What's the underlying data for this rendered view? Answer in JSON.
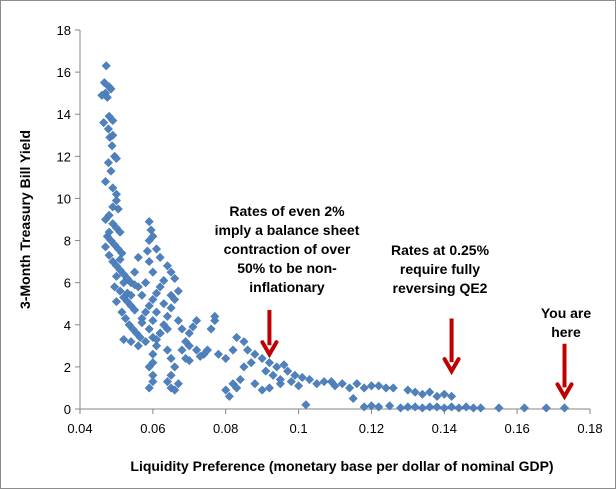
{
  "chart_data": {
    "type": "scatter",
    "title": "",
    "xlabel": "Liquidity Preference (monetary base per dollar of nominal GDP)",
    "ylabel": "3-Month Treasury Bill Yield",
    "xlim": [
      0.04,
      0.18
    ],
    "ylim": [
      0,
      18
    ],
    "x_ticks": [
      "0.04",
      "0.06",
      "0.08",
      "0.1",
      "0.12",
      "0.14",
      "0.16",
      "0.18"
    ],
    "y_ticks": [
      "0",
      "2",
      "4",
      "6",
      "8",
      "10",
      "12",
      "14",
      "16",
      "18"
    ],
    "grid": false,
    "legend": "none",
    "marker": "diamond",
    "marker_color": "#4f81bd",
    "arrow_color": "#c00000",
    "series": [
      {
        "points": [
          [
            0.0472,
            16.3
          ],
          [
            0.0467,
            15.5
          ],
          [
            0.048,
            15.3
          ],
          [
            0.047,
            15.0
          ],
          [
            0.0475,
            14.8
          ],
          [
            0.0485,
            15.2
          ],
          [
            0.0465,
            13.6
          ],
          [
            0.0478,
            13.3
          ],
          [
            0.049,
            13.7
          ],
          [
            0.0482,
            12.9
          ],
          [
            0.0488,
            12.5
          ],
          [
            0.0495,
            12.0
          ],
          [
            0.0478,
            11.7
          ],
          [
            0.0485,
            11.3
          ],
          [
            0.05,
            11.9
          ],
          [
            0.047,
            10.8
          ],
          [
            0.049,
            10.5
          ],
          [
            0.05,
            10.2
          ],
          [
            0.0505,
            9.5
          ],
          [
            0.048,
            9.2
          ],
          [
            0.047,
            9.0
          ],
          [
            0.049,
            8.8
          ],
          [
            0.05,
            8.6
          ],
          [
            0.051,
            8.4
          ],
          [
            0.0475,
            8.2
          ],
          [
            0.0485,
            8.0
          ],
          [
            0.0495,
            7.8
          ],
          [
            0.0505,
            7.6
          ],
          [
            0.0515,
            7.4
          ],
          [
            0.047,
            7.7
          ],
          [
            0.048,
            7.3
          ],
          [
            0.049,
            7.0
          ],
          [
            0.05,
            6.8
          ],
          [
            0.051,
            6.6
          ],
          [
            0.052,
            6.4
          ],
          [
            0.053,
            6.2
          ],
          [
            0.054,
            6.0
          ],
          [
            0.05,
            6.3
          ],
          [
            0.0495,
            5.8
          ],
          [
            0.051,
            5.6
          ],
          [
            0.052,
            5.3
          ],
          [
            0.053,
            5.1
          ],
          [
            0.054,
            4.9
          ],
          [
            0.055,
            4.7
          ],
          [
            0.05,
            5.1
          ],
          [
            0.0515,
            4.6
          ],
          [
            0.0525,
            4.3
          ],
          [
            0.0535,
            4.0
          ],
          [
            0.0545,
            3.8
          ],
          [
            0.0555,
            3.6
          ],
          [
            0.0565,
            3.4
          ],
          [
            0.052,
            3.3
          ],
          [
            0.054,
            3.2
          ],
          [
            0.056,
            3.0
          ],
          [
            0.058,
            3.2
          ],
          [
            0.06,
            3.4
          ],
          [
            0.062,
            3.6
          ],
          [
            0.064,
            3.8
          ],
          [
            0.057,
            4.3
          ],
          [
            0.058,
            4.6
          ],
          [
            0.059,
            4.9
          ],
          [
            0.06,
            5.2
          ],
          [
            0.061,
            5.5
          ],
          [
            0.062,
            5.8
          ],
          [
            0.063,
            6.1
          ],
          [
            0.06,
            6.5
          ],
          [
            0.059,
            7.0
          ],
          [
            0.0585,
            7.5
          ],
          [
            0.059,
            8.0
          ],
          [
            0.0595,
            8.5
          ],
          [
            0.059,
            8.9
          ],
          [
            0.06,
            8.2
          ],
          [
            0.061,
            7.6
          ],
          [
            0.062,
            7.2
          ],
          [
            0.064,
            6.8
          ],
          [
            0.065,
            6.5
          ],
          [
            0.066,
            6.2
          ],
          [
            0.067,
            5.6
          ],
          [
            0.066,
            5.2
          ],
          [
            0.065,
            4.8
          ],
          [
            0.064,
            4.4
          ],
          [
            0.063,
            4.0
          ],
          [
            0.062,
            3.6
          ],
          [
            0.061,
            3.0
          ],
          [
            0.06,
            2.6
          ],
          [
            0.06,
            2.2
          ],
          [
            0.059,
            2.0
          ],
          [
            0.06,
            1.6
          ],
          [
            0.06,
            1.3
          ],
          [
            0.059,
            1.0
          ],
          [
            0.064,
            2.8
          ],
          [
            0.065,
            2.4
          ],
          [
            0.066,
            2.0
          ],
          [
            0.065,
            1.6
          ],
          [
            0.064,
            1.3
          ],
          [
            0.065,
            1.0
          ],
          [
            0.066,
            0.9
          ],
          [
            0.067,
            1.2
          ],
          [
            0.068,
            2.8
          ],
          [
            0.069,
            3.2
          ],
          [
            0.07,
            3.6
          ],
          [
            0.071,
            3.9
          ],
          [
            0.072,
            4.2
          ],
          [
            0.07,
            3.0
          ],
          [
            0.072,
            2.8
          ],
          [
            0.074,
            2.6
          ],
          [
            0.07,
            2.3
          ],
          [
            0.073,
            2.5
          ],
          [
            0.076,
            3.8
          ],
          [
            0.077,
            4.2
          ],
          [
            0.077,
            4.4
          ],
          [
            0.075,
            2.8
          ],
          [
            0.078,
            2.6
          ],
          [
            0.08,
            2.4
          ],
          [
            0.082,
            2.8
          ],
          [
            0.083,
            3.4
          ],
          [
            0.085,
            3.2
          ],
          [
            0.086,
            2.8
          ],
          [
            0.088,
            2.6
          ],
          [
            0.09,
            2.4
          ],
          [
            0.092,
            2.2
          ],
          [
            0.094,
            2.0
          ],
          [
            0.096,
            2.1
          ],
          [
            0.097,
            1.8
          ],
          [
            0.099,
            1.6
          ],
          [
            0.101,
            1.5
          ],
          [
            0.095,
            1.2
          ],
          [
            0.098,
            1.3
          ],
          [
            0.1,
            1.1
          ],
          [
            0.105,
            1.2
          ],
          [
            0.107,
            1.3
          ],
          [
            0.109,
            1.3
          ],
          [
            0.112,
            1.2
          ],
          [
            0.114,
            1.0
          ],
          [
            0.116,
            1.2
          ],
          [
            0.118,
            1.0
          ],
          [
            0.12,
            1.1
          ],
          [
            0.122,
            1.1
          ],
          [
            0.124,
            1.0
          ],
          [
            0.126,
            1.0
          ],
          [
            0.13,
            0.9
          ],
          [
            0.132,
            0.8
          ],
          [
            0.134,
            0.7
          ],
          [
            0.136,
            0.8
          ],
          [
            0.138,
            0.6
          ],
          [
            0.14,
            0.7
          ],
          [
            0.142,
            0.6
          ],
          [
            0.082,
            1.2
          ],
          [
            0.084,
            1.4
          ],
          [
            0.08,
            0.9
          ],
          [
            0.081,
            0.6
          ],
          [
            0.083,
            1.0
          ],
          [
            0.088,
            1.2
          ],
          [
            0.09,
            0.9
          ],
          [
            0.092,
            1.0
          ],
          [
            0.102,
            0.2
          ],
          [
            0.115,
            0.5
          ],
          [
            0.118,
            0.1
          ],
          [
            0.12,
            0.15
          ],
          [
            0.122,
            0.1
          ],
          [
            0.125,
            0.15
          ],
          [
            0.128,
            0.05
          ],
          [
            0.13,
            0.1
          ],
          [
            0.132,
            0.1
          ],
          [
            0.134,
            0.05
          ],
          [
            0.136,
            0.1
          ],
          [
            0.138,
            0.1
          ],
          [
            0.14,
            0.05
          ],
          [
            0.142,
            0.1
          ],
          [
            0.144,
            0.05
          ],
          [
            0.146,
            0.1
          ],
          [
            0.148,
            0.05
          ],
          [
            0.15,
            0.05
          ],
          [
            0.155,
            0.05
          ],
          [
            0.162,
            0.05
          ],
          [
            0.168,
            0.05
          ],
          [
            0.173,
            0.05
          ],
          [
            0.056,
            5.8
          ],
          [
            0.057,
            5.4
          ],
          [
            0.058,
            6.0
          ],
          [
            0.055,
            6.5
          ],
          [
            0.056,
            7.2
          ],
          [
            0.053,
            5.5
          ],
          [
            0.06,
            4.2
          ],
          [
            0.061,
            4.6
          ],
          [
            0.063,
            5.0
          ],
          [
            0.065,
            5.4
          ],
          [
            0.067,
            4.2
          ],
          [
            0.068,
            3.8
          ],
          [
            0.069,
            2.4
          ],
          [
            0.085,
            2.0
          ],
          [
            0.087,
            2.2
          ],
          [
            0.091,
            1.8
          ],
          [
            0.093,
            1.6
          ],
          [
            0.095,
            1.4
          ],
          [
            0.103,
            1.4
          ],
          [
            0.11,
            1.1
          ],
          [
            0.048,
            8.4
          ],
          [
            0.049,
            9.6
          ],
          [
            0.05,
            9.9
          ],
          [
            0.048,
            13.9
          ],
          [
            0.049,
            13.0
          ],
          [
            0.046,
            14.9
          ],
          [
            0.051,
            7.1
          ],
          [
            0.052,
            6.0
          ],
          [
            0.054,
            5.4
          ],
          [
            0.055,
            5.9
          ],
          [
            0.057,
            4.1
          ],
          [
            0.059,
            3.8
          ],
          [
            0.061,
            3.3
          ]
        ]
      }
    ],
    "annotations": [
      {
        "lines": [
          "Rates of even 2%",
          "imply a balance sheet",
          "contraction of over",
          "50% to be non-",
          "inflationary"
        ],
        "arrow": {
          "x": 0.092,
          "y_top": 4.7,
          "y_tip": 2.6
        }
      },
      {
        "lines": [
          "Rates at 0.25%",
          "require fully",
          "reversing QE2"
        ],
        "arrow": {
          "x": 0.142,
          "y_top": 4.3,
          "y_tip": 1.8
        }
      },
      {
        "lines": [
          "You are",
          "here"
        ],
        "arrow": {
          "x": 0.173,
          "y_top": 3.1,
          "y_tip": 0.6
        }
      }
    ]
  }
}
